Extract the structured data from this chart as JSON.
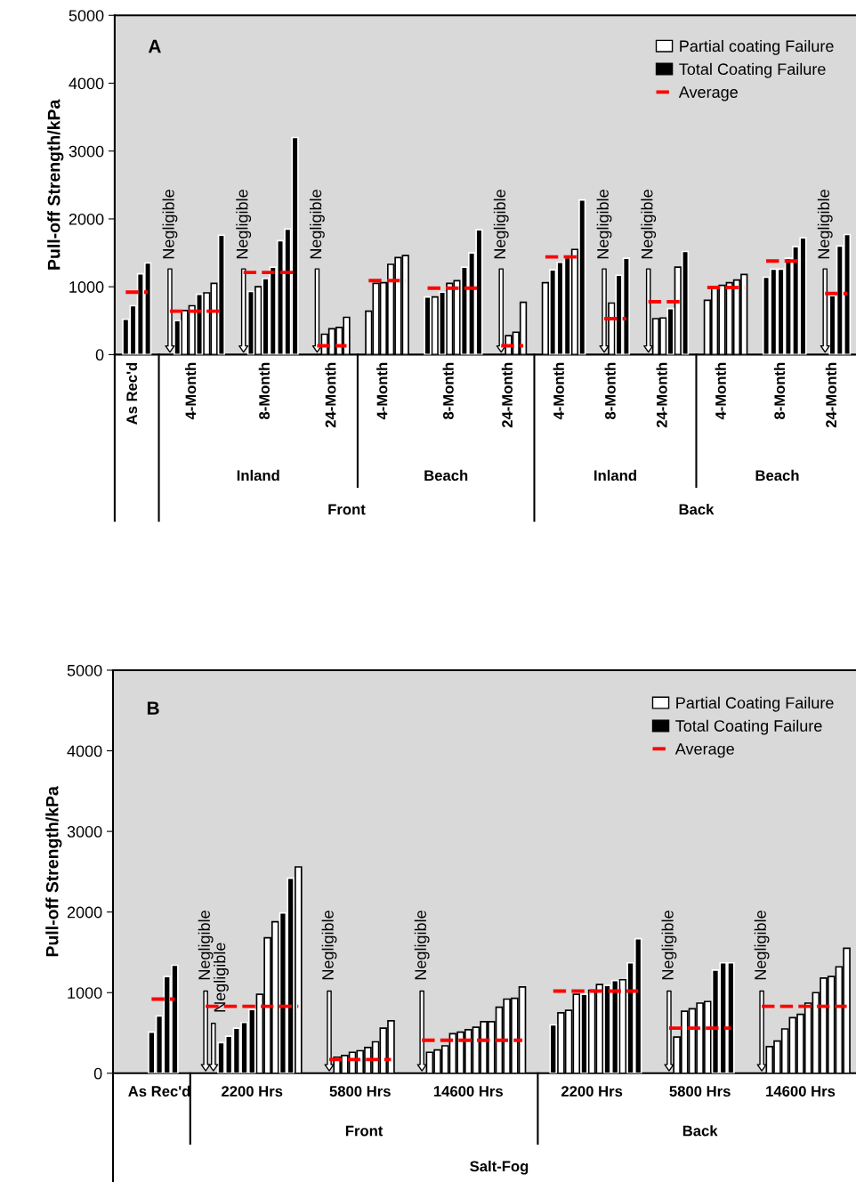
{
  "chart_data": [
    {
      "type": "bar",
      "title": "A",
      "ylabel": "Pull-off Strength/kPa",
      "ylim": [
        0,
        5000
      ],
      "yticks": [
        0,
        1000,
        2000,
        3000,
        4000,
        5000
      ],
      "legend": "top right",
      "categories": [
        null,
        "As Rec'd",
        null,
        null,
        null,
        null,
        null,
        null,
        null,
        "4-Month",
        null,
        null,
        null,
        null,
        null,
        null,
        null,
        null,
        null,
        "8-Month",
        null,
        null,
        null,
        null,
        null,
        null,
        null,
        null,
        "24-Month",
        null,
        null,
        null,
        null,
        null,
        null,
        "4-Month",
        null,
        null,
        null,
        null,
        null,
        null,
        null,
        null,
        "8-Month",
        null,
        null,
        null,
        null,
        null,
        null,
        null,
        "24-Month",
        null,
        null,
        null,
        null,
        null,
        null,
        "4-Month",
        null,
        null,
        null,
        null,
        null,
        null,
        "8-Month",
        null,
        null,
        null,
        null,
        null,
        null,
        "24-Month",
        null,
        null,
        null,
        null,
        null,
        null,
        null,
        "4-Month",
        null,
        null,
        null,
        null,
        null,
        null,
        null,
        "8-Month",
        null,
        null,
        null,
        null,
        null,
        null,
        "24-Month",
        null,
        null
      ],
      "series": [
        {
          "name": "Partial coating Failure",
          "color": "#ffffff",
          "values": [
            null,
            null,
            null,
            null,
            null,
            null,
            0,
            null,
            650,
            720,
            null,
            910,
            1050,
            null,
            null,
            null,
            0,
            null,
            1000,
            null,
            null,
            null,
            null,
            null,
            null,
            null,
            0,
            300,
            380,
            400,
            550,
            null,
            null,
            640,
            1050,
            1060,
            1330,
            1430,
            1460,
            null,
            null,
            null,
            850,
            null,
            1050,
            1090,
            null,
            null,
            null,
            null,
            null,
            0,
            280,
            330,
            770,
            null,
            null,
            1060,
            null,
            null,
            null,
            1550,
            null,
            null,
            null,
            0,
            760,
            null,
            null,
            null,
            null,
            0,
            530,
            540,
            null,
            1290,
            null,
            null,
            null,
            800,
            1000,
            1020,
            1060,
            1100,
            1180,
            null,
            null,
            null,
            null,
            null,
            null,
            null,
            null,
            null,
            null,
            0,
            null,
            null,
            null
          ]
        },
        {
          "name": "Total Coating Failure",
          "color": "#000000",
          "values": [
            520,
            720,
            1190,
            1350,
            null,
            null,
            null,
            500,
            null,
            null,
            890,
            null,
            null,
            1760,
            null,
            null,
            null,
            930,
            null,
            1120,
            1290,
            1680,
            1850,
            3200,
            null,
            null,
            null,
            null,
            null,
            null,
            null,
            null,
            null,
            null,
            null,
            null,
            null,
            null,
            null,
            null,
            null,
            850,
            null,
            920,
            null,
            null,
            1290,
            1500,
            1840,
            null,
            null,
            null,
            null,
            null,
            null,
            null,
            null,
            null,
            1250,
            1360,
            1430,
            null,
            2280,
            null,
            null,
            null,
            null,
            1170,
            1420,
            null,
            null,
            null,
            null,
            null,
            680,
            null,
            1520,
            null,
            null,
            null,
            null,
            null,
            null,
            null,
            null,
            null,
            null,
            1140,
            1260,
            1260,
            1420,
            1590,
            1720,
            null,
            null,
            null,
            870,
            1600,
            1770
          ]
        },
        {
          "name": "Average",
          "type": "line",
          "line_style": "dashed",
          "color": "#ff0000",
          "values": [
            920,
            920,
            920,
            920,
            null,
            null,
            640,
            640,
            640,
            640,
            640,
            640,
            640,
            640,
            null,
            null,
            1210,
            1210,
            1210,
            1210,
            1210,
            1210,
            1210,
            1210,
            null,
            null,
            130,
            130,
            130,
            130,
            130,
            null,
            null,
            1090,
            1090,
            1090,
            1090,
            1090,
            1090,
            null,
            null,
            980,
            980,
            980,
            980,
            980,
            980,
            980,
            980,
            null,
            null,
            130,
            130,
            130,
            130,
            null,
            null,
            1440,
            1440,
            1440,
            1440,
            1440,
            1440,
            null,
            null,
            530,
            530,
            530,
            530,
            null,
            null,
            780,
            780,
            780,
            780,
            780,
            780,
            null,
            null,
            990,
            990,
            990,
            990,
            990,
            990,
            null,
            null,
            1380,
            1380,
            1380,
            1380,
            1380,
            1380,
            null,
            null,
            900,
            900,
            900,
            900
          ]
        }
      ],
      "annotations": [
        "Inland",
        "Beach",
        "Inland",
        "Beach",
        "Front",
        "Back",
        "Negligible",
        "Negligible",
        "Negligible",
        "Negligible",
        "Negligible",
        "Negligible",
        "Negligible"
      ]
    },
    {
      "type": "bar",
      "title": "B",
      "ylabel": "Pull-off Strength/kPa",
      "ylim": [
        0,
        5000
      ],
      "yticks": [
        0,
        1000,
        2000,
        3000,
        4000,
        5000
      ],
      "legend": "top right",
      "categories": [
        null,
        "As Rec'd",
        null,
        null,
        null,
        null,
        null,
        null,
        null,
        null,
        null,
        null,
        null,
        "2200 Hrs",
        null,
        null,
        null,
        null,
        null,
        null,
        null,
        null,
        null,
        null,
        null,
        null,
        null,
        "5800 Hrs",
        null,
        null,
        null,
        null,
        null,
        null,
        null,
        null,
        null,
        null,
        null,
        null,
        null,
        "14600 Hrs",
        null,
        null,
        null,
        null,
        null,
        null,
        null,
        null,
        null,
        null,
        null,
        null,
        null,
        null,
        null,
        "2200 Hrs",
        null,
        null,
        null,
        null,
        null,
        null,
        null,
        null,
        null,
        null,
        null,
        null,
        null,
        "5800 Hrs",
        null,
        null,
        null,
        null,
        null,
        null,
        null,
        null,
        null,
        null,
        null,
        null,
        "14600 Hrs",
        null,
        null,
        null,
        null,
        null,
        null
      ],
      "series": [
        {
          "name": "Partial Coating Failure",
          "color": "#ffffff",
          "values": [
            null,
            null,
            null,
            null,
            null,
            null,
            null,
            0,
            0,
            null,
            null,
            null,
            null,
            null,
            980,
            1680,
            1880,
            null,
            null,
            2560,
            null,
            null,
            null,
            0,
            200,
            220,
            260,
            280,
            320,
            390,
            560,
            650,
            null,
            null,
            null,
            0,
            260,
            290,
            340,
            490,
            510,
            540,
            570,
            640,
            640,
            820,
            920,
            930,
            1070,
            null,
            null,
            null,
            null,
            750,
            780,
            980,
            null,
            1030,
            1100,
            null,
            null,
            1160,
            null,
            null,
            null,
            null,
            null,
            0,
            450,
            770,
            800,
            870,
            890,
            null,
            null,
            null,
            null,
            null,
            null,
            0,
            330,
            400,
            550,
            690,
            730,
            870,
            1000,
            1180,
            1200,
            1320,
            1550
          ]
        },
        {
          "name": "Total Coating Failure",
          "color": "#000000",
          "values": [
            510,
            710,
            1200,
            1340,
            null,
            null,
            null,
            null,
            null,
            380,
            460,
            560,
            630,
            790,
            null,
            null,
            null,
            1990,
            2420,
            null,
            null,
            null,
            null,
            null,
            null,
            null,
            null,
            null,
            null,
            null,
            null,
            null,
            null,
            null,
            null,
            null,
            null,
            null,
            null,
            null,
            null,
            null,
            null,
            null,
            null,
            null,
            null,
            null,
            null,
            null,
            null,
            null,
            600,
            null,
            null,
            null,
            980,
            null,
            null,
            1090,
            1150,
            null,
            1370,
            1670,
            null,
            null,
            null,
            null,
            null,
            null,
            null,
            null,
            null,
            1280,
            1370,
            1370,
            null,
            null,
            null,
            null,
            null,
            null,
            null,
            null,
            null,
            null,
            null,
            null,
            null,
            null,
            null
          ]
        },
        {
          "name": "Average",
          "type": "line",
          "line_style": "dashed",
          "color": "#ff0000",
          "values": [
            920,
            920,
            920,
            920,
            null,
            null,
            null,
            830,
            830,
            830,
            830,
            830,
            830,
            830,
            830,
            830,
            830,
            830,
            830,
            830,
            null,
            null,
            null,
            170,
            170,
            170,
            170,
            170,
            170,
            170,
            170,
            170,
            null,
            null,
            null,
            410,
            410,
            410,
            410,
            410,
            410,
            410,
            410,
            410,
            410,
            410,
            410,
            410,
            410,
            null,
            null,
            null,
            1020,
            1020,
            1020,
            1020,
            1020,
            1020,
            1020,
            1020,
            1020,
            1020,
            1020,
            1020,
            null,
            null,
            null,
            560,
            560,
            560,
            560,
            560,
            560,
            560,
            560,
            560,
            null,
            null,
            null,
            830,
            830,
            830,
            830,
            830,
            830,
            830,
            830,
            830,
            830,
            830,
            830
          ]
        }
      ],
      "annotations": [
        "Front",
        "Back",
        "Salt-Fog",
        "Negligible",
        "Negligible",
        "Negligible",
        "Negligible",
        "Negligible",
        "Negligible"
      ]
    }
  ]
}
